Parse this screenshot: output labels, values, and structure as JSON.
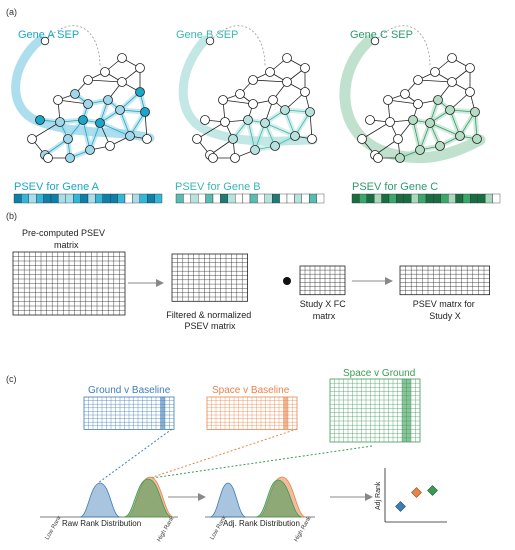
{
  "figure": {
    "colors": {
      "gene_a": "#1aa7c9",
      "gene_a_light": "#9fd8ea",
      "gene_b": "#3ab7b0",
      "gene_b_light": "#b7e3df",
      "gene_c": "#2e9c6a",
      "gene_c_light": "#b5dcc4",
      "ground": "#3f7db5",
      "space_v_baseline": "#e8844a",
      "space_v_ground": "#3c9a56",
      "node_fill": "#ffffff",
      "edge": "#222222",
      "grid": "#222222"
    },
    "panel_a": {
      "label": "(a)",
      "genes": [
        {
          "title": "Gene A SEP",
          "caption": "PSEV for Gene A",
          "bar": [
            3,
            2,
            1,
            2,
            3,
            3,
            1,
            1,
            2,
            3,
            1,
            2,
            3,
            3,
            2,
            0,
            1,
            2,
            3,
            2
          ]
        },
        {
          "title": "Gene B SEP",
          "caption": "PSEV for Gene B",
          "bar": [
            2,
            0,
            1,
            0,
            2,
            0,
            3,
            1,
            0,
            0,
            2,
            0,
            1,
            3,
            0,
            0,
            1,
            0,
            2,
            0
          ]
        },
        {
          "title": "Gene C SEP",
          "caption": "PSEV for Gene C",
          "bar": [
            3,
            2,
            3,
            1,
            3,
            2,
            3,
            3,
            1,
            2,
            3,
            3,
            2,
            1,
            3,
            2,
            3,
            3,
            1,
            0
          ]
        }
      ]
    },
    "panel_b": {
      "label": "(b)",
      "precomputed_label": "Pre-computed PSEV\nmatrix",
      "filtered_label": "Filtered & normalized\nPSEV matrix",
      "fc_label": "Study X FC\nmatrx",
      "result_label": "PSEV matrx for\nStudy X"
    },
    "panel_c": {
      "label": "(c)",
      "ground_title": "Ground v Baseline",
      "space_title": "Space v Baseline",
      "spaceground_title": "Space v Ground",
      "raw_caption": "Raw Rank Distribution",
      "adj_caption": "Adj. Rank Distribution",
      "low_rank": "Low Rank",
      "high_rank": "High Rank",
      "adj_rank_axis": "Adj Rank"
    }
  }
}
